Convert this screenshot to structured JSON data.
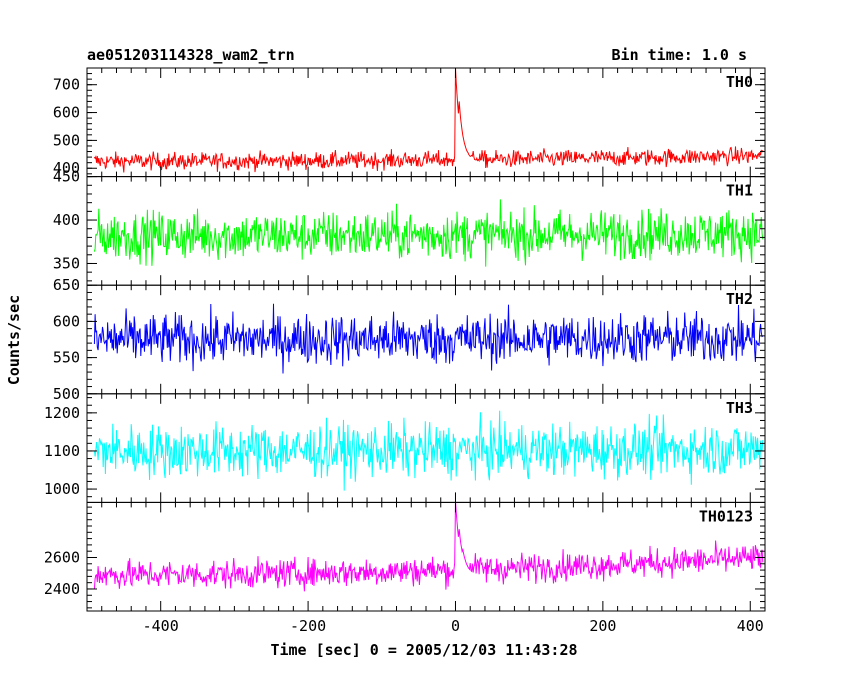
{
  "chart_data": {
    "type": "line",
    "title": "ae051203114328_wam2_trn",
    "subtitle": "Bin time: 1.0 s",
    "xlabel": "Time [sec] 0 = 2005/12/03 11:43:28",
    "ylabel": "Counts/sec",
    "xlim": [
      -500,
      420
    ],
    "xticks": [
      -400,
      -200,
      0,
      200,
      400
    ],
    "grid": false,
    "panels": [
      {
        "name": "TH0",
        "color": "#ff0000",
        "ylim": [
          370,
          760
        ],
        "yticks": [
          400,
          500,
          600,
          700
        ],
        "baseline": 425,
        "noise": 22,
        "trend_end": 445,
        "peaks": [
          {
            "t": 0,
            "peak": 760
          },
          {
            "t": 5,
            "peak": 640
          },
          {
            "t": 10,
            "peak": 500
          }
        ]
      },
      {
        "name": "TH1",
        "color": "#00ff00",
        "ylim": [
          325,
          450
        ],
        "yticks": [
          350,
          400,
          450
        ],
        "baseline": 382,
        "noise": 20,
        "trend_end": 385,
        "peaks": []
      },
      {
        "name": "TH2",
        "color": "#0000ff",
        "ylim": [
          500,
          650
        ],
        "yticks": [
          500,
          550,
          600,
          650
        ],
        "baseline": 575,
        "noise": 25,
        "trend_end": 577,
        "peaks": []
      },
      {
        "name": "TH3",
        "color": "#00ffff",
        "ylim": [
          965,
          1250
        ],
        "yticks": [
          1000,
          1100,
          1200
        ],
        "baseline": 1100,
        "noise": 50,
        "trend_end": 1105,
        "peaks": []
      },
      {
        "name": "TH0123",
        "color": "#ff00ff",
        "ylim": [
          2260,
          2950
        ],
        "yticks": [
          2400,
          2600
        ],
        "baseline": 2490,
        "noise": 65,
        "trend_end": 2600,
        "peaks": [
          {
            "t": 0,
            "peak": 2960
          },
          {
            "t": 5,
            "peak": 2780
          },
          {
            "t": 10,
            "peak": 2650
          }
        ]
      }
    ]
  }
}
